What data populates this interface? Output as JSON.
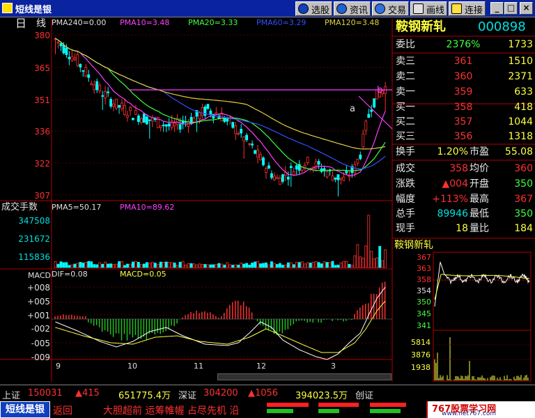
{
  "window": {
    "title": "短线是银"
  },
  "toolbar": {
    "buttons": [
      {
        "label": "选股"
      },
      {
        "label": "资讯"
      },
      {
        "label": "交易"
      },
      {
        "label": "画线"
      },
      {
        "label": "连接"
      }
    ]
  },
  "window_controls": {
    "minimize": "_",
    "maximize": "□",
    "close": "×"
  },
  "chart_header": {
    "period": "日",
    "mode": "线",
    "ma_labels": [
      "PMA240=0.00",
      "PMA10=3.48",
      "PMA20=3.33",
      "PMA60=3.29",
      "PMA120=3.48"
    ]
  },
  "price_axis": [
    "380",
    "365",
    "351",
    "336",
    "322",
    "307"
  ],
  "markers": {
    "a": "a",
    "b": "b"
  },
  "volume": {
    "title": "成交手数",
    "ma_labels": [
      "PMA5=50.17",
      "PMA10=89.62"
    ],
    "ticks": [
      "347508",
      "231672",
      "115836"
    ]
  },
  "macd": {
    "title": "MACD",
    "labels": [
      "DIF=0.08",
      "MACD=0.05"
    ],
    "ticks": [
      "+008",
      "+005",
      "+001",
      "-002",
      "-005",
      "-009"
    ]
  },
  "x_axis": [
    "9",
    "10",
    "11",
    "12",
    "3"
  ],
  "stock": {
    "name": "鞍钢新轧",
    "code": "000898"
  },
  "order_book": {
    "weibi": {
      "label": "委比",
      "value": "2376%",
      "vol": "1733"
    },
    "asks": [
      {
        "label": "卖三",
        "price": "361",
        "vol": "1510"
      },
      {
        "label": "卖二",
        "price": "360",
        "vol": "2371"
      },
      {
        "label": "卖一",
        "price": "359",
        "vol": "633"
      }
    ],
    "bids": [
      {
        "label": "买一",
        "price": "358",
        "vol": "418"
      },
      {
        "label": "买二",
        "price": "357",
        "vol": "1044"
      },
      {
        "label": "买三",
        "price": "356",
        "vol": "1318"
      }
    ]
  },
  "stats": [
    {
      "l1": "换手",
      "v1": "1.20%",
      "l2": "市盈",
      "v2": "55.08"
    },
    {
      "l1": "成交",
      "v1": "358",
      "l2": "均价",
      "v2": "360"
    },
    {
      "l1": "涨跌",
      "v1": "▲004",
      "l2": "开盘",
      "v2": "350"
    },
    {
      "l1": "幅度",
      "v1": "+113%",
      "l2": "最高",
      "v2": "367"
    },
    {
      "l1": "总手",
      "v1": "89946",
      "l2": "最低",
      "v2": "350"
    },
    {
      "l1": "现手",
      "v1": "18",
      "l2": "量比",
      "v2": "184"
    }
  ],
  "mini_chart": {
    "title": "鞍钢新轧",
    "price_ticks": [
      "367",
      "363",
      "358",
      "354",
      "350",
      "345",
      "341"
    ],
    "vol_ticks": [
      "5814",
      "3876",
      "1938"
    ]
  },
  "status": {
    "sh_label": "上证",
    "sh_value": "150031",
    "sh_change": "▲415",
    "sh_amount": "651775.4万",
    "sz_label": "深证",
    "sz_value": "304200",
    "sz_change": "▲1056",
    "sz_amount": "394023.5万",
    "cy_label": "创证"
  },
  "bottom": {
    "logo": "短线是银",
    "back": "返回",
    "ticker": "大胆超前  运筹帷幄  占尽先机  沿",
    "site": "767股票学习网",
    "site_url": "www.net767.com"
  },
  "colors": {
    "up": "#ff3030",
    "down": "#00ffff",
    "ma10": "#ff40ff",
    "ma20": "#40ff40",
    "ma60": "#3050ff",
    "ma120": "#e0d040",
    "resistance": "#ff40ff",
    "titlebar": "#0a24a0"
  }
}
